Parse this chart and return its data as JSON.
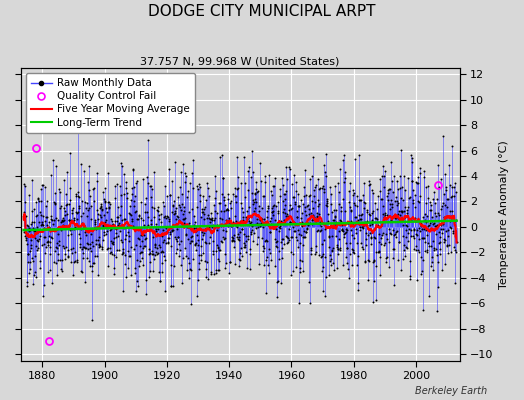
{
  "title": "DODGE CITY MUNICIPAL ARPT",
  "subtitle": "37.757 N, 99.968 W (United States)",
  "attribution": "Berkeley Earth",
  "ylabel": "Temperature Anomaly (°C)",
  "xlim": [
    1873,
    2014
  ],
  "ylim": [
    -10.5,
    12.5
  ],
  "yticks": [
    -10,
    -8,
    -6,
    -4,
    -2,
    0,
    2,
    4,
    6,
    8,
    10,
    12
  ],
  "xticks": [
    1880,
    1900,
    1920,
    1940,
    1960,
    1980,
    2000
  ],
  "start_year": 1874.0,
  "end_year": 2013.0,
  "seed": 42,
  "bg_color": "#d8d8d8",
  "plot_bg_color": "#d8d8d8",
  "raw_line_color": "#4444ff",
  "raw_dot_color": "#000000",
  "qc_fail_color": "#ff00ff",
  "moving_avg_color": "#ff0000",
  "trend_color": "#00cc00",
  "grid_color": "#ffffff",
  "title_fontsize": 11,
  "subtitle_fontsize": 8,
  "legend_fontsize": 7.5,
  "axis_fontsize": 8,
  "ylabel_fontsize": 8,
  "moving_avg_window": 60,
  "qc_fail_years": [
    1878.0,
    1882.0,
    2007.0
  ],
  "qc_fail_values": [
    6.2,
    -9.0,
    3.3
  ]
}
